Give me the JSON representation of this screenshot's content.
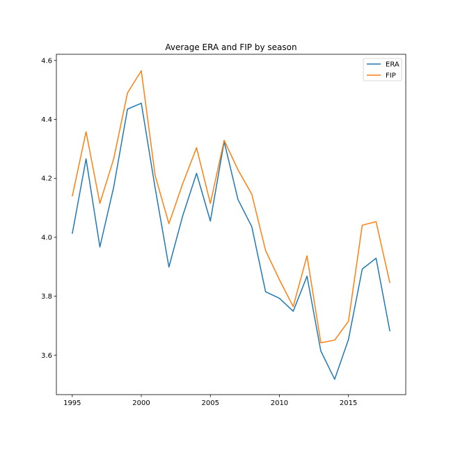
{
  "chart_data": {
    "type": "line",
    "title": "Average ERA and FIP by season",
    "xlabel": "",
    "ylabel": "",
    "x": [
      1995,
      1996,
      1997,
      1998,
      1999,
      2000,
      2001,
      2002,
      2003,
      2004,
      2005,
      2006,
      2007,
      2008,
      2009,
      2010,
      2011,
      2012,
      2013,
      2014,
      2015,
      2016,
      2017,
      2018
    ],
    "xlim": [
      1993.85,
      2019.15
    ],
    "ylim": [
      3.466,
      4.621
    ],
    "x_ticks": [
      1995,
      2000,
      2005,
      2010,
      2015
    ],
    "y_ticks": [
      3.6,
      3.8,
      4.0,
      4.2,
      4.4,
      4.6
    ],
    "x_tick_labels": [
      "1995",
      "2000",
      "2005",
      "2010",
      "2015"
    ],
    "y_tick_labels": [
      "3.6",
      "3.8",
      "4.0",
      "4.2",
      "4.4",
      "4.6"
    ],
    "grid": false,
    "legend_position": "top-right",
    "series": [
      {
        "name": "ERA",
        "color": "#1f77b4",
        "values": [
          4.012,
          4.266,
          3.967,
          4.17,
          4.435,
          4.455,
          4.168,
          3.899,
          4.073,
          4.217,
          4.055,
          4.325,
          4.128,
          4.036,
          3.815,
          3.793,
          3.749,
          3.868,
          3.614,
          3.518,
          3.653,
          3.892,
          3.929,
          3.681
        ]
      },
      {
        "name": "FIP",
        "color": "#ff7f0e",
        "values": [
          4.139,
          4.358,
          4.115,
          4.266,
          4.49,
          4.565,
          4.21,
          4.046,
          4.182,
          4.304,
          4.115,
          4.329,
          4.229,
          4.146,
          3.955,
          3.856,
          3.765,
          3.937,
          3.642,
          3.651,
          3.715,
          4.041,
          4.053,
          3.845
        ]
      }
    ]
  }
}
